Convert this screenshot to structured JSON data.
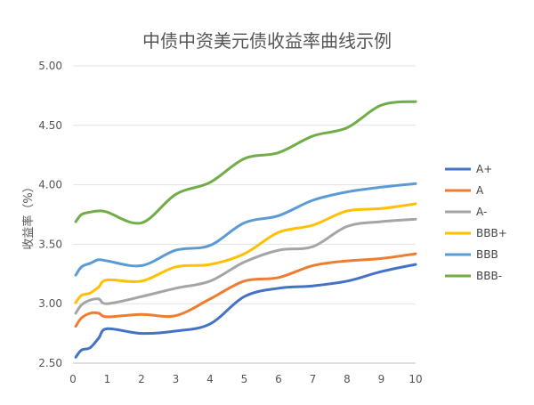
{
  "chart_data": {
    "type": "line",
    "title": "中债中资美元债收益率曲线示例",
    "xlabel": "",
    "ylabel": "收益率（%）",
    "xlim": [
      0,
      10
    ],
    "ylim": [
      2.5,
      5.0
    ],
    "x_ticks": [
      "0",
      "1",
      "2",
      "3",
      "4",
      "5",
      "6",
      "7",
      "8",
      "9",
      "10"
    ],
    "y_ticks": [
      "2.50",
      "3.00",
      "3.50",
      "4.00",
      "4.50",
      "5.00"
    ],
    "grid": "horizontal",
    "legend_position": "right",
    "x": [
      0.08,
      0.25,
      0.5,
      0.75,
      1,
      2,
      3,
      4,
      5,
      6,
      7,
      8,
      9,
      10
    ],
    "series": [
      {
        "name": "A+",
        "color": "#4472c4",
        "values": [
          2.55,
          2.61,
          2.63,
          2.71,
          2.79,
          2.75,
          2.77,
          2.83,
          3.06,
          3.13,
          3.15,
          3.19,
          3.27,
          3.33
        ]
      },
      {
        "name": "A",
        "color": "#ed7d31",
        "values": [
          2.81,
          2.88,
          2.92,
          2.92,
          2.89,
          2.91,
          2.9,
          3.04,
          3.19,
          3.22,
          3.32,
          3.36,
          3.38,
          3.42
        ]
      },
      {
        "name": "A-",
        "color": "#a5a5a5",
        "values": [
          2.92,
          2.99,
          3.03,
          3.04,
          3.0,
          3.06,
          3.13,
          3.19,
          3.35,
          3.45,
          3.48,
          3.65,
          3.69,
          3.71
        ]
      },
      {
        "name": "BBB+",
        "color": "#ffc000",
        "values": [
          3.01,
          3.07,
          3.09,
          3.14,
          3.2,
          3.19,
          3.31,
          3.33,
          3.42,
          3.6,
          3.66,
          3.78,
          3.8,
          3.84
        ]
      },
      {
        "name": "BBB",
        "color": "#5b9bd5",
        "values": [
          3.24,
          3.31,
          3.34,
          3.37,
          3.36,
          3.32,
          3.45,
          3.49,
          3.68,
          3.74,
          3.87,
          3.94,
          3.98,
          4.01
        ]
      },
      {
        "name": "BBB-",
        "color": "#70ad47",
        "values": [
          3.69,
          3.75,
          3.77,
          3.78,
          3.77,
          3.68,
          3.92,
          4.02,
          4.22,
          4.27,
          4.41,
          4.48,
          4.67,
          4.7
        ]
      }
    ]
  }
}
